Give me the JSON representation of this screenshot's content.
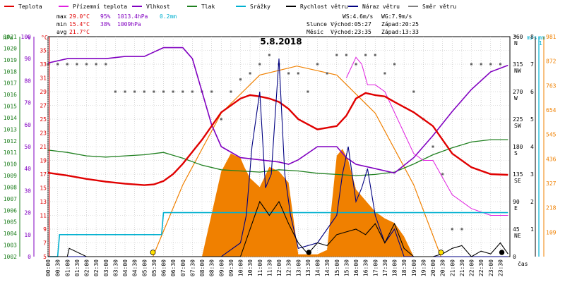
{
  "title": "5.8.2018",
  "legend": [
    {
      "label": "Teplota",
      "color": "#e00000"
    },
    {
      "label": "Přízemní teplota",
      "color": "#e020e0"
    },
    {
      "label": "Vlhkost",
      "color": "#8000c0"
    },
    {
      "label": "Tlak",
      "color": "#208020"
    },
    {
      "label": "Srážky",
      "color": "#00b0d0"
    },
    {
      "label": "Rychlost větru",
      "color": "#000000"
    },
    {
      "label": "Náraz větru",
      "color": "#000080"
    },
    {
      "label": "Směr větru",
      "color": "#808080"
    }
  ],
  "stats": {
    "max": {
      "label": "max",
      "temp": "29.0°C",
      "hum": "95%",
      "press": "1013.4hPa",
      "rain": "0.2mm"
    },
    "min": {
      "label": "min",
      "temp": "15.4°C",
      "hum": "38%",
      "press": "1009hPa"
    },
    "avg": {
      "label": "avg",
      "temp": "21.7°C"
    }
  },
  "info": {
    "ws": "WS:4.6m/s",
    "wg": "WG:7.9m/s",
    "sun_label": "Slunce",
    "sun_rise": "Východ:05:27",
    "sun_set": "Západ:20:25",
    "moon_label": "Měsíc",
    "moon_rise": "Východ:23:35",
    "moon_set": "Západ:13:33"
  },
  "axis_units": {
    "hpa": "hPa",
    "pct": "%",
    "degc": "°C",
    "deg": "°",
    "ms": "m/s",
    "mm": "mm",
    "cas": "čas"
  },
  "colors": {
    "temp": "#e00000",
    "feel": "#e020e0",
    "hum": "#8000c0",
    "press": "#208020",
    "rain": "#00b0d0",
    "wind": "#000000",
    "gust": "#000080",
    "dir": "#606060",
    "sun": "#f08000",
    "solar_fill": "#f08000"
  },
  "chart_data": {
    "type": "line",
    "x_unit": "hour",
    "x_ticks": [
      "00:00",
      "00:30",
      "01:00",
      "01:30",
      "02:00",
      "02:30",
      "03:00",
      "03:30",
      "04:00",
      "04:30",
      "05:00",
      "05:30",
      "06:00",
      "06:30",
      "07:00",
      "07:30",
      "08:00",
      "08:30",
      "09:00",
      "09:30",
      "10:00",
      "10:30",
      "11:00",
      "11:30",
      "12:00",
      "12:30",
      "13:00",
      "13:30",
      "14:00",
      "14:30",
      "15:00",
      "15:30",
      "16:00",
      "16:30",
      "17:00",
      "17:30",
      "18:00",
      "18:30",
      "19:00",
      "19:30",
      "20:00",
      "20:30",
      "21:00",
      "21:30",
      "22:00",
      "22:30",
      "23:00",
      "23:30"
    ],
    "axes": {
      "pressure_hpa": {
        "ylim": [
          1002,
          1021
        ],
        "ticks": [
          1002,
          1003,
          1004,
          1005,
          1006,
          1007,
          1008,
          1009,
          1010,
          1011,
          1012,
          1013,
          1014,
          1015,
          1016,
          1017,
          1018,
          1019,
          1020,
          1021
        ]
      },
      "humidity_pct": {
        "ylim": [
          0,
          100
        ],
        "ticks": [
          0,
          10,
          20,
          30,
          40,
          50,
          60,
          70,
          80,
          90,
          100
        ]
      },
      "temperature_c": {
        "ylim": [
          5,
          37
        ],
        "ticks": [
          5,
          7,
          9,
          11,
          13,
          15,
          17,
          19,
          21,
          23,
          25,
          27,
          29,
          31,
          33,
          35
        ]
      },
      "wind_dir_deg": {
        "ylim": [
          0,
          360
        ],
        "ticks": [
          0,
          45,
          90,
          135,
          180,
          225,
          270,
          315,
          360
        ],
        "labels": [
          "",
          "NE",
          "E",
          "SE",
          "S",
          "SW",
          "W",
          "NW",
          "N"
        ]
      },
      "wind_ms": {
        "ylim": [
          0,
          8
        ],
        "ticks": [
          1,
          2,
          3,
          4,
          5,
          6,
          7,
          8
        ]
      },
      "rain_mm": {
        "ylim": [
          0,
          1
        ],
        "ticks": [
          1
        ]
      },
      "solar": {
        "ylim": [
          0,
          981
        ],
        "ticks": [
          109,
          218,
          327,
          436,
          545,
          654,
          763,
          872,
          981
        ]
      }
    },
    "series": [
      {
        "name": "Teplota",
        "axis": "temperature_c",
        "x": [
          0,
          1,
          2,
          3,
          4,
          5,
          5.5,
          6,
          6.5,
          7,
          8,
          9,
          10,
          10.5,
          11,
          11.5,
          12,
          12.5,
          13,
          14,
          15,
          15.5,
          16,
          16.5,
          17,
          17.5,
          18,
          19,
          20,
          21,
          22,
          23,
          23.9
        ],
        "values": [
          17.2,
          16.8,
          16.3,
          15.9,
          15.6,
          15.4,
          15.5,
          16,
          17,
          18.5,
          22,
          26,
          28,
          28.5,
          28.3,
          28,
          27.5,
          26.5,
          25,
          23.5,
          24,
          25.5,
          28,
          28.8,
          28.5,
          28.3,
          27.5,
          26,
          24,
          20,
          18,
          17,
          16.9
        ]
      },
      {
        "name": "Přízemní teplota",
        "axis": "temperature_c",
        "x": [
          15.5,
          16,
          16.3,
          16.6,
          17,
          17.5,
          18,
          18.5,
          19,
          19.5,
          20,
          21,
          22,
          23,
          23.9
        ],
        "values": [
          31,
          34,
          33,
          30,
          30,
          29,
          26,
          23,
          20,
          19,
          19,
          14,
          12,
          11,
          11
        ]
      },
      {
        "name": "Vlhkost",
        "axis": "humidity_pct",
        "x": [
          0,
          1,
          2,
          3,
          4,
          5,
          5.5,
          6,
          7,
          7.5,
          8,
          8.5,
          9,
          10,
          11,
          12,
          12.5,
          13,
          14,
          15,
          15.5,
          16,
          17,
          18,
          19,
          20,
          21,
          22,
          23,
          23.9
        ],
        "values": [
          88,
          90,
          90,
          90,
          91,
          91,
          93,
          95,
          95,
          90,
          75,
          60,
          50,
          45,
          44,
          43,
          42,
          44,
          50,
          50,
          45,
          42,
          40,
          38,
          45,
          55,
          66,
          76,
          84,
          87
        ]
      },
      {
        "name": "Tlak",
        "axis": "pressure_hpa",
        "x": [
          0,
          1,
          2,
          3,
          4,
          5,
          6,
          7,
          8,
          9,
          10,
          11,
          12,
          13,
          14,
          15,
          16,
          17,
          18,
          19,
          20,
          21,
          22,
          23,
          23.9
        ],
        "values": [
          1011.2,
          1011,
          1010.7,
          1010.6,
          1010.7,
          1010.8,
          1011,
          1010.5,
          1009.9,
          1009.5,
          1009.4,
          1009.3,
          1009.5,
          1009.4,
          1009.2,
          1009.1,
          1009,
          1009.1,
          1009.3,
          1010,
          1010.8,
          1011.4,
          1011.9,
          1012.1,
          1012.1
        ]
      },
      {
        "name": "Srážky",
        "axis": "rain_mm",
        "x": [
          0,
          0.5,
          0.6,
          5.9,
          6,
          23.9
        ],
        "values": [
          0,
          0,
          0.1,
          0.1,
          0.2,
          0.2
        ]
      },
      {
        "name": "Rychlost větru",
        "axis": "wind_ms",
        "x": [
          0,
          1,
          1.1,
          2,
          3,
          4,
          5,
          6,
          7,
          8,
          9,
          9.5,
          10,
          10.5,
          11,
          11.5,
          12,
          12.5,
          13,
          13.5,
          14,
          14.5,
          15,
          15.5,
          16,
          16.5,
          17,
          17.5,
          18,
          18.5,
          19,
          20,
          20.5,
          21,
          21.5,
          22,
          22.5,
          23,
          23.5,
          23.9
        ],
        "values": [
          0,
          0,
          0.3,
          0,
          0,
          0,
          0,
          0,
          0,
          0,
          0,
          0,
          0,
          1,
          2,
          1.5,
          2,
          1.2,
          0.5,
          0.1,
          0.5,
          0.4,
          0.8,
          0.9,
          1,
          0.8,
          1.2,
          0.5,
          1.2,
          0.3,
          0,
          0,
          0.1,
          0.3,
          0.4,
          0,
          0.2,
          0.1,
          0.5,
          0.1
        ]
      },
      {
        "name": "Náraz větru",
        "axis": "wind_ms",
        "x": [
          0,
          9,
          10,
          10.3,
          10.6,
          11,
          11.3,
          11.6,
          12,
          12.3,
          12.6,
          13,
          14,
          15,
          15.3,
          15.6,
          16,
          16.3,
          16.6,
          17,
          17.5,
          18,
          18.5,
          19,
          23.9
        ],
        "values": [
          0,
          0,
          0.5,
          1.5,
          4,
          6,
          2.5,
          3,
          7.2,
          3,
          1.5,
          0.3,
          0.5,
          1.5,
          3,
          4,
          2,
          2.5,
          3.2,
          1.5,
          0.5,
          1,
          0,
          0,
          0
        ]
      },
      {
        "name": "Slunce",
        "axis": "solar",
        "x": [
          5.45,
          7,
          9,
          11,
          12.93,
          15,
          17,
          19,
          20.42
        ],
        "values": [
          0,
          320,
          640,
          810,
          850,
          810,
          640,
          320,
          0
        ]
      },
      {
        "name": "Solární radiace",
        "axis": "solar",
        "x": [
          8,
          9,
          9.5,
          10,
          10.2,
          10.5,
          11,
          11.5,
          12,
          12.5,
          13,
          13.5,
          14,
          14.5,
          15,
          15.3,
          15.6,
          16,
          16.5,
          17,
          17.5,
          18,
          18.5,
          19
        ],
        "values": [
          0,
          380,
          460,
          440,
          400,
          350,
          310,
          400,
          380,
          330,
          10,
          10,
          10,
          30,
          450,
          480,
          430,
          300,
          250,
          200,
          170,
          150,
          90,
          0
        ]
      },
      {
        "name": "Směr větru",
        "axis": "wind_dir_deg",
        "type": "scatter",
        "x": [
          0,
          0.5,
          1,
          1.5,
          2,
          2.5,
          3,
          3.5,
          4,
          4.5,
          5,
          5.5,
          6,
          6.5,
          7,
          7.5,
          8,
          8.5,
          9,
          9.5,
          10,
          10.5,
          11,
          11.5,
          12,
          12.5,
          13,
          13.5,
          14,
          14.5,
          15,
          15.5,
          16,
          16.5,
          17,
          17.5,
          18,
          19,
          19.5,
          20,
          20.5,
          21,
          21.5,
          22,
          22.5,
          23,
          23.5
        ],
        "values": [
          315,
          315,
          315,
          315,
          315,
          315,
          315,
          270,
          270,
          270,
          270,
          270,
          270,
          270,
          270,
          270,
          270,
          270,
          225,
          270,
          290,
          300,
          315,
          330,
          315,
          300,
          300,
          270,
          315,
          300,
          330,
          330,
          315,
          330,
          330,
          300,
          315,
          270,
          225,
          180,
          135,
          45,
          45,
          315,
          315,
          315,
          315
        ]
      }
    ]
  }
}
